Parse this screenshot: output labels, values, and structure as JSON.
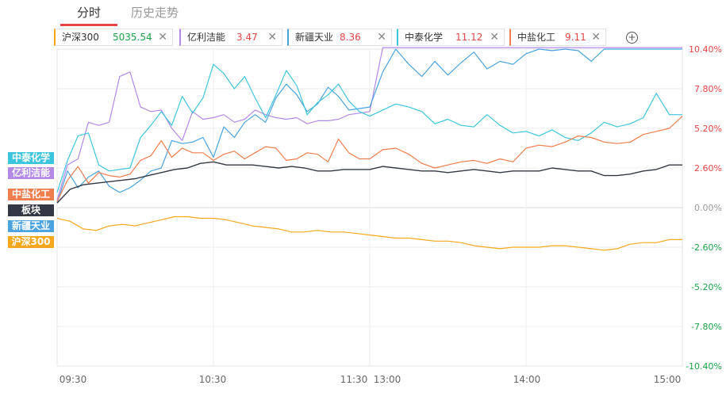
{
  "tabs": [
    {
      "label": "分时",
      "active": true
    },
    {
      "label": "历史走势",
      "active": false
    }
  ],
  "legend": [
    {
      "name": "沪深300",
      "value": "5035.54",
      "color": "#f5a81c",
      "value_color": "#1aa34a"
    },
    {
      "name": "亿利洁能",
      "value": "3.47",
      "color": "#b489e6",
      "value_color": "#e84545"
    },
    {
      "name": "新疆天业",
      "value": "8.36",
      "color": "#4aa3df",
      "value_color": "#e84545"
    },
    {
      "name": "中泰化学",
      "value": "11.12",
      "color": "#3ec5de",
      "value_color": "#e84545"
    },
    {
      "name": "中盐化工",
      "value": "9.11",
      "color": "#ef7e4e",
      "value_color": "#e84545"
    }
  ],
  "add_symbol": "+",
  "close_symbol": "✕",
  "tags": [
    {
      "label": "中泰化学",
      "color": "#3ec5de"
    },
    {
      "label": "亿利洁能",
      "color": "#b489e6"
    },
    {
      "label": "中盐化工",
      "color": "#ef7e4e"
    },
    {
      "label": "板块",
      "color": "#333844"
    },
    {
      "label": "新疆天业",
      "color": "#4aa3df"
    },
    {
      "label": "沪深300",
      "color": "#f5a81c"
    }
  ],
  "chart_data": {
    "type": "line",
    "x_ticks": [
      "09:30",
      "10:30",
      "11:30",
      "13:00",
      "14:00",
      "15:00"
    ],
    "ylim": [
      -10.4,
      10.4
    ],
    "y_ticks": [
      {
        "value": 10.4,
        "label": "10.40%",
        "color": "#e84545"
      },
      {
        "value": 7.8,
        "label": "7.80%",
        "color": "#e84545"
      },
      {
        "value": 5.2,
        "label": "5.20%",
        "color": "#e84545"
      },
      {
        "value": 2.6,
        "label": "2.60%",
        "color": "#e84545"
      },
      {
        "value": 0,
        "label": "0.00%",
        "color": "#999999"
      },
      {
        "value": -2.6,
        "label": "-2.60%",
        "color": "#1aa34a"
      },
      {
        "value": -5.2,
        "label": "-5.20%",
        "color": "#1aa34a"
      },
      {
        "value": -7.8,
        "label": "-7.80%",
        "color": "#1aa34a"
      },
      {
        "value": -10.4,
        "label": "-10.40%",
        "color": "#1aa34a"
      }
    ],
    "series": [
      {
        "name": "沪深300",
        "color": "#f5a81c",
        "x": [
          0,
          5,
          10,
          15,
          20,
          25,
          30,
          35,
          40,
          45,
          50,
          55,
          60,
          65,
          70,
          75,
          80,
          85,
          90,
          95,
          100,
          105,
          110,
          115,
          120,
          125,
          130,
          135,
          140,
          145,
          150,
          155,
          160,
          165,
          170,
          175,
          180,
          185,
          190,
          195,
          200,
          205,
          210,
          215,
          220,
          225,
          230,
          235,
          240
        ],
        "y": [
          -0.7,
          -0.9,
          -1.4,
          -1.5,
          -1.2,
          -1.1,
          -1.2,
          -1.0,
          -0.8,
          -0.6,
          -0.6,
          -0.7,
          -0.7,
          -0.8,
          -1.0,
          -1.2,
          -1.3,
          -1.4,
          -1.6,
          -1.6,
          -1.5,
          -1.6,
          -1.6,
          -1.7,
          -1.8,
          -1.9,
          -2.0,
          -2.0,
          -2.1,
          -2.2,
          -2.2,
          -2.3,
          -2.5,
          -2.6,
          -2.7,
          -2.6,
          -2.6,
          -2.6,
          -2.5,
          -2.5,
          -2.6,
          -2.7,
          -2.8,
          -2.7,
          -2.4,
          -2.3,
          -2.3,
          -2.1,
          -2.1
        ]
      },
      {
        "name": "亿利洁能",
        "color": "#b489e6",
        "x": [
          0,
          4,
          8,
          12,
          16,
          20,
          24,
          28,
          32,
          36,
          40,
          44,
          48,
          52,
          56,
          60,
          64,
          68,
          72,
          76,
          80,
          84,
          88,
          92,
          96,
          100,
          104,
          108,
          112,
          116,
          120,
          125,
          130,
          135,
          140,
          145,
          150,
          155,
          160,
          165,
          170,
          175,
          180,
          185,
          190,
          195,
          200,
          205,
          210,
          215,
          220,
          225,
          230,
          235,
          240
        ],
        "y": [
          0.5,
          2.8,
          3.2,
          5.6,
          5.4,
          5.6,
          8.6,
          8.9,
          6.6,
          6.3,
          6.4,
          5.2,
          4.4,
          6.3,
          5.8,
          5.9,
          6.1,
          5.6,
          5.8,
          6.4,
          6.1,
          5.9,
          5.8,
          5.9,
          5.5,
          5.7,
          5.7,
          5.8,
          6.1,
          6.2,
          6.3,
          10.5,
          10.5,
          10.5,
          10.5,
          10.5,
          10.5,
          10.5,
          10.5,
          10.5,
          10.5,
          10.5,
          10.5,
          10.5,
          10.5,
          10.5,
          10.5,
          10.5,
          10.5,
          10.5,
          10.5,
          10.5,
          10.5,
          10.5,
          10.5
        ]
      },
      {
        "name": "新疆天业",
        "color": "#4aa3df",
        "x": [
          0,
          4,
          8,
          12,
          16,
          20,
          24,
          28,
          32,
          36,
          40,
          44,
          48,
          52,
          56,
          60,
          64,
          68,
          72,
          76,
          80,
          84,
          88,
          92,
          96,
          100,
          104,
          108,
          112,
          116,
          120,
          125,
          130,
          135,
          140,
          145,
          150,
          155,
          160,
          165,
          170,
          175,
          180,
          185,
          190,
          195,
          200,
          205,
          210,
          215,
          220,
          225,
          230,
          235,
          240
        ],
        "y": [
          0.3,
          2.4,
          1.3,
          2.0,
          2.4,
          1.4,
          1.0,
          1.3,
          1.8,
          2.4,
          2.6,
          4.4,
          4.2,
          4.3,
          4.6,
          3.3,
          5.3,
          4.6,
          5.6,
          6.1,
          5.6,
          7.2,
          8.1,
          7.4,
          6.3,
          6.8,
          7.9,
          7.3,
          6.4,
          6.5,
          6.6,
          8.9,
          10.4,
          9.4,
          8.6,
          9.6,
          8.7,
          9.5,
          10.2,
          9.1,
          9.6,
          9.4,
          10.1,
          10.4,
          10.3,
          10.4,
          10.3,
          9.6,
          10.4,
          10.4,
          10.4,
          10.4,
          10.4,
          10.4,
          10.4
        ]
      },
      {
        "name": "中泰化学",
        "color": "#3ec5de",
        "x": [
          0,
          4,
          8,
          12,
          16,
          20,
          24,
          28,
          32,
          36,
          40,
          44,
          48,
          52,
          56,
          60,
          64,
          68,
          72,
          76,
          80,
          84,
          88,
          92,
          96,
          100,
          104,
          108,
          112,
          116,
          120,
          125,
          130,
          135,
          140,
          145,
          150,
          155,
          160,
          165,
          170,
          175,
          180,
          185,
          190,
          195,
          200,
          205,
          210,
          215,
          220,
          225,
          230,
          235,
          240
        ],
        "y": [
          1.0,
          3.1,
          4.7,
          4.9,
          2.8,
          2.4,
          2.5,
          2.6,
          4.6,
          5.4,
          6.3,
          5.4,
          7.3,
          6.2,
          7.2,
          9.4,
          8.8,
          7.8,
          8.6,
          7.2,
          5.9,
          7.4,
          9.0,
          8.0,
          6.1,
          6.9,
          7.4,
          8.1,
          7.0,
          6.3,
          6.0,
          6.4,
          6.8,
          6.6,
          6.3,
          5.5,
          5.8,
          5.4,
          5.3,
          6.1,
          5.4,
          4.9,
          5.0,
          4.7,
          5.1,
          4.6,
          4.4,
          4.9,
          5.6,
          5.3,
          5.5,
          5.9,
          7.5,
          6.1,
          6.1
        ]
      },
      {
        "name": "中盐化工",
        "color": "#ef7e4e",
        "x": [
          0,
          4,
          8,
          12,
          16,
          20,
          24,
          28,
          32,
          36,
          40,
          44,
          48,
          52,
          56,
          60,
          64,
          68,
          72,
          76,
          80,
          84,
          88,
          92,
          96,
          100,
          104,
          108,
          112,
          116,
          120,
          125,
          130,
          135,
          140,
          145,
          150,
          155,
          160,
          165,
          170,
          175,
          180,
          185,
          190,
          195,
          200,
          205,
          210,
          215,
          220,
          225,
          230,
          235,
          240
        ],
        "y": [
          0.4,
          1.8,
          2.7,
          1.6,
          2.3,
          2.1,
          2.0,
          2.2,
          3.1,
          3.4,
          4.4,
          3.3,
          3.9,
          3.6,
          3.6,
          3.1,
          3.5,
          3.7,
          3.2,
          3.6,
          4.0,
          3.9,
          3.1,
          3.2,
          3.6,
          3.5,
          3.0,
          4.5,
          3.6,
          3.2,
          3.2,
          3.8,
          3.9,
          3.5,
          2.9,
          2.6,
          2.8,
          3.0,
          3.1,
          2.9,
          3.2,
          3.0,
          3.9,
          4.1,
          4.0,
          4.3,
          4.7,
          4.6,
          4.3,
          4.2,
          4.3,
          4.8,
          5.0,
          5.2,
          6.0
        ]
      },
      {
        "name": "板块",
        "color": "#333844",
        "x": [
          0,
          5,
          10,
          15,
          20,
          25,
          30,
          35,
          40,
          45,
          50,
          55,
          60,
          65,
          70,
          75,
          80,
          85,
          90,
          95,
          100,
          105,
          110,
          115,
          120,
          125,
          130,
          135,
          140,
          145,
          150,
          155,
          160,
          165,
          170,
          175,
          180,
          185,
          190,
          195,
          200,
          205,
          210,
          215,
          220,
          225,
          230,
          235,
          240
        ],
        "y": [
          0.3,
          1.2,
          1.5,
          1.6,
          1.7,
          1.8,
          1.9,
          2.1,
          2.3,
          2.5,
          2.6,
          2.9,
          3.0,
          2.8,
          2.8,
          2.8,
          2.7,
          2.6,
          2.7,
          2.6,
          2.4,
          2.4,
          2.5,
          2.5,
          2.5,
          2.7,
          2.6,
          2.5,
          2.4,
          2.4,
          2.3,
          2.4,
          2.5,
          2.4,
          2.3,
          2.4,
          2.4,
          2.4,
          2.6,
          2.5,
          2.4,
          2.4,
          2.1,
          2.1,
          2.2,
          2.4,
          2.5,
          2.8,
          2.8
        ]
      }
    ]
  }
}
